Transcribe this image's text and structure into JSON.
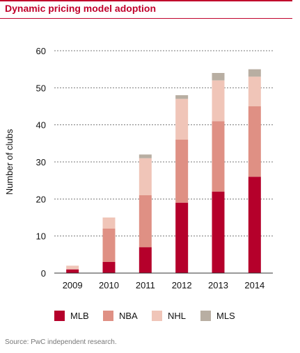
{
  "title": "Dynamic pricing model adoption",
  "source": "Source: PwC independent research.",
  "colors": {
    "accent": "#c0002b",
    "MLB": "#b5002b",
    "NBA": "#df9084",
    "NHL": "#f0c5b8",
    "MLS": "#b8aea2"
  },
  "chart_data": {
    "type": "bar",
    "stacked": true,
    "title": "Dynamic pricing model adoption",
    "xlabel": "",
    "ylabel": "Number of clubs",
    "ylim": [
      0,
      60
    ],
    "yticks": [
      0,
      10,
      20,
      30,
      40,
      50,
      60
    ],
    "grid": true,
    "legend_position": "bottom",
    "categories": [
      "2009",
      "2010",
      "2011",
      "2012",
      "2013",
      "2014"
    ],
    "series": [
      {
        "name": "MLB",
        "values": [
          1,
          3,
          7,
          19,
          22,
          26
        ]
      },
      {
        "name": "NBA",
        "values": [
          0,
          9,
          14,
          17,
          19,
          19
        ]
      },
      {
        "name": "NHL",
        "values": [
          1,
          3,
          10,
          11,
          11,
          8
        ]
      },
      {
        "name": "MLS",
        "values": [
          0,
          0,
          1,
          1,
          2,
          2
        ]
      }
    ]
  }
}
